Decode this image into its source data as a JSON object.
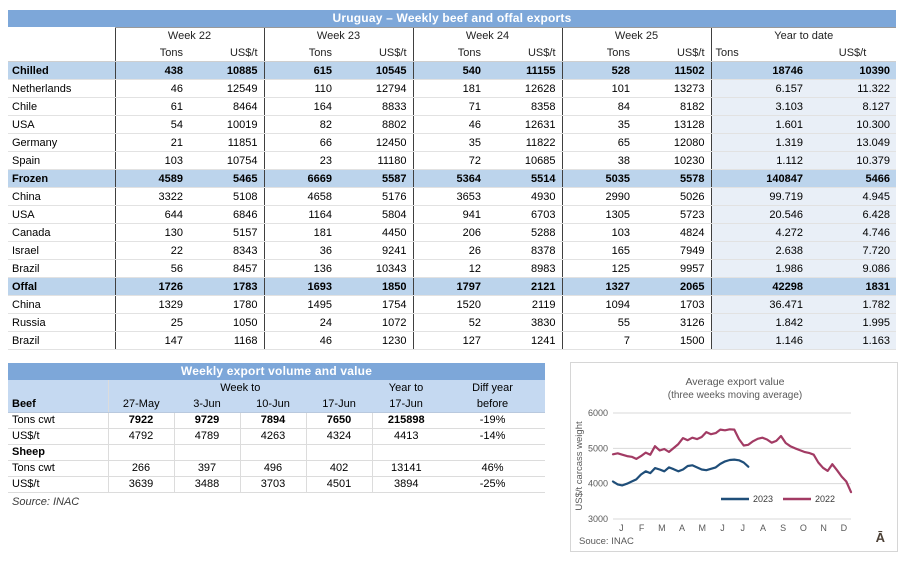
{
  "colors": {
    "title_bar_blue": "#7da7d9",
    "header_fill": "#c5d9f1",
    "section_row_fill": "#bcd4ec",
    "ytd_column_fill": "#e9eff7",
    "group_separator": "#404040",
    "grid_line": "#d9d9d9",
    "series_2023": "#1f4e79",
    "series_2022": "#a23b64"
  },
  "table1": {
    "title": "Uruguay – Weekly beef and offal exports",
    "week_headers": [
      "Week 22",
      "Week 23",
      "Week 24",
      "Week 25"
    ],
    "ytd_header": "Year to date",
    "unit_tons": "Tons",
    "unit_price": "US$/t",
    "rows": [
      {
        "label": "Chilled",
        "type": "section",
        "values": [
          "438",
          "10885",
          "615",
          "10545",
          "540",
          "11155",
          "528",
          "11502",
          "18746",
          "10390"
        ]
      },
      {
        "label": "Netherlands",
        "type": "data",
        "values": [
          "46",
          "12549",
          "110",
          "12794",
          "181",
          "12628",
          "101",
          "13273",
          "6.157",
          "11.322"
        ]
      },
      {
        "label": "Chile",
        "type": "data",
        "values": [
          "61",
          "8464",
          "164",
          "8833",
          "71",
          "8358",
          "84",
          "8182",
          "3.103",
          "8.127"
        ]
      },
      {
        "label": "USA",
        "type": "data",
        "values": [
          "54",
          "10019",
          "82",
          "8802",
          "46",
          "12631",
          "35",
          "13128",
          "1.601",
          "10.300"
        ]
      },
      {
        "label": "Germany",
        "type": "data",
        "values": [
          "21",
          "11851",
          "66",
          "12450",
          "35",
          "11822",
          "65",
          "12080",
          "1.319",
          "13.049"
        ]
      },
      {
        "label": "Spain",
        "type": "data",
        "values": [
          "103",
          "10754",
          "23",
          "11180",
          "72",
          "10685",
          "38",
          "10230",
          "1.112",
          "10.379"
        ]
      },
      {
        "label": "Frozen",
        "type": "section",
        "values": [
          "4589",
          "5465",
          "6669",
          "5587",
          "5364",
          "5514",
          "5035",
          "5578",
          "140847",
          "5466"
        ]
      },
      {
        "label": "China",
        "type": "data",
        "values": [
          "3322",
          "5108",
          "4658",
          "5176",
          "3653",
          "4930",
          "2990",
          "5026",
          "99.719",
          "4.945"
        ]
      },
      {
        "label": "USA",
        "type": "data",
        "values": [
          "644",
          "6846",
          "1164",
          "5804",
          "941",
          "6703",
          "1305",
          "5723",
          "20.546",
          "6.428"
        ]
      },
      {
        "label": "Canada",
        "type": "data",
        "values": [
          "130",
          "5157",
          "181",
          "4450",
          "206",
          "5288",
          "103",
          "4824",
          "4.272",
          "4.746"
        ]
      },
      {
        "label": "Israel",
        "type": "data",
        "values": [
          "22",
          "8343",
          "36",
          "9241",
          "26",
          "8378",
          "165",
          "7949",
          "2.638",
          "7.720"
        ]
      },
      {
        "label": "Brazil",
        "type": "data",
        "values": [
          "56",
          "8457",
          "136",
          "10343",
          "12",
          "8983",
          "125",
          "9957",
          "1.986",
          "9.086"
        ]
      },
      {
        "label": "Offal",
        "type": "section",
        "values": [
          "1726",
          "1783",
          "1693",
          "1850",
          "1797",
          "2121",
          "1327",
          "2065",
          "42298",
          "1831"
        ]
      },
      {
        "label": "China",
        "type": "data",
        "values": [
          "1329",
          "1780",
          "1495",
          "1754",
          "1520",
          "2119",
          "1094",
          "1703",
          "36.471",
          "1.782"
        ]
      },
      {
        "label": "Russia",
        "type": "data",
        "values": [
          "25",
          "1050",
          "24",
          "1072",
          "52",
          "3830",
          "55",
          "3126",
          "1.842",
          "1.995"
        ]
      },
      {
        "label": "Brazil",
        "type": "data",
        "values": [
          "147",
          "1168",
          "46",
          "1230",
          "127",
          "1241",
          "7",
          "1500",
          "1.146",
          "1.163"
        ]
      }
    ]
  },
  "table2": {
    "title": "Weekly export volume and value",
    "header": {
      "week_to": "Week to",
      "year_to": "Year to",
      "diff_year": "Diff year",
      "label": "Beef",
      "dates": [
        "27-May",
        "3-Jun",
        "10-Jun",
        "17-Jun"
      ],
      "year_date": "17-Jun",
      "diff_sub": "before"
    },
    "rows": [
      {
        "label": "Tons cwt",
        "bold": true,
        "section": false,
        "values": [
          "7922",
          "9729",
          "7894",
          "7650",
          "215898",
          "-19%"
        ]
      },
      {
        "label": "US$/t",
        "bold": false,
        "section": false,
        "values": [
          "4792",
          "4789",
          "4263",
          "4324",
          "4413",
          "-14%"
        ]
      },
      {
        "label": "Sheep",
        "bold": false,
        "section": true,
        "values": [
          "",
          "",
          "",
          "",
          "",
          ""
        ]
      },
      {
        "label": "Tons cwt",
        "bold": false,
        "section": false,
        "values": [
          "266",
          "397",
          "496",
          "402",
          "13141",
          "46%"
        ]
      },
      {
        "label": "US$/t",
        "bold": false,
        "section": false,
        "values": [
          "3639",
          "3488",
          "3703",
          "4501",
          "3894",
          "-25%"
        ]
      }
    ],
    "source": "Source: INAC"
  },
  "chart_data": {
    "type": "line",
    "title": "Average export value",
    "subtitle": "(three weeks moving average)",
    "ylabel": "US$/t carcass weight",
    "ylim": [
      3000,
      6000
    ],
    "yticks": [
      3000,
      4000,
      5000,
      6000
    ],
    "grid": true,
    "legend_position": "bottom-inside",
    "x_tick_labels": [
      "J",
      "F",
      "M",
      "A",
      "M",
      "J",
      "J",
      "A",
      "S",
      "O",
      "N",
      "D"
    ],
    "x_unit": "weeks",
    "weeks_per_year": 52,
    "series": [
      {
        "name": "2023",
        "color": "#1f4e79",
        "values": [
          4060,
          3980,
          3950,
          4000,
          4060,
          4120,
          4260,
          4350,
          4300,
          4440,
          4400,
          4350,
          4460,
          4410,
          4350,
          4400,
          4500,
          4520,
          4460,
          4400,
          4380,
          4420,
          4460,
          4560,
          4630,
          4670,
          4680,
          4660,
          4600,
          4480
        ]
      },
      {
        "name": "2022",
        "color": "#a23b64",
        "values": [
          4830,
          4860,
          4820,
          4780,
          4760,
          4700,
          4780,
          4880,
          4820,
          5060,
          4940,
          4980,
          4900,
          5010,
          5120,
          5290,
          5230,
          5300,
          5260,
          5320,
          5460,
          5400,
          5430,
          5530,
          5510,
          5540,
          5530,
          5260,
          5080,
          5100,
          5200,
          5270,
          5300,
          5250,
          5160,
          5210,
          5350,
          5150,
          5060,
          5000,
          4950,
          4900,
          4870,
          4820,
          4600,
          4450,
          4360,
          4550,
          4380,
          4200,
          4060,
          3760
        ]
      }
    ],
    "source": "Souce: INAC",
    "logo_glyph": "Ā"
  }
}
